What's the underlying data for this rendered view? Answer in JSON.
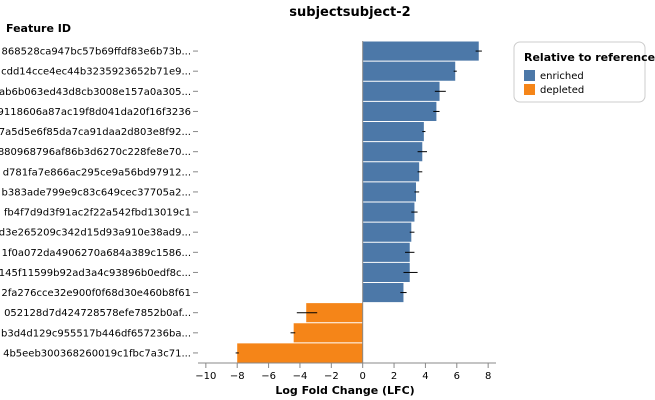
{
  "chart_data": {
    "type": "bar",
    "orientation": "horizontal",
    "title": "subjectsubject-2",
    "ylabel": "Feature ID",
    "xlabel": "Log Fold Change (LFC)",
    "xlim": [
      -10.5,
      8.5
    ],
    "xticks": [
      -10,
      -8,
      -6,
      -4,
      -2,
      0,
      2,
      4,
      6,
      8
    ],
    "xtick_labels": [
      "−10",
      "−8",
      "−6",
      "−4",
      "−2",
      "0",
      "2",
      "4",
      "6",
      "8"
    ],
    "grid": false,
    "legend": {
      "title": "Relative to reference",
      "placement": "top-right",
      "entries": [
        {
          "label": "enriched",
          "color": "#4c78a8"
        },
        {
          "label": "depleted",
          "color": "#f58518"
        }
      ]
    },
    "categories": [
      "868528ca947bc57b69ffdf83e6b73b...",
      "cdd14cce4ec44b3235923652b71e9...",
      "ab6b063ed43d8cb3008e157a0a305...",
      "9118606a87ac19f8d041da20f16f3236",
      "7a5d5e6f85da7ca91daa2d803e8f92...",
      "880968796af86b3d6270c228fe8e70...",
      "d781fa7e866ac295ce9a56bd97912...",
      "b383ade799e9c83c649cec37705a2...",
      "fb4f7d9d3f91ac2f22a542fbd13019c1",
      "d3e265209c342d15d93a910e38ad9...",
      "1f0a072da4906270a684a389c1586...",
      "145f11599b92ad3a4c93896b0edf8c...",
      "2fa276cce32e900f0f68d30e460b8f61",
      "052128d7d424728578efe7852b0af...",
      "b3d4d129c955517b446df657236ba...",
      "4b5eeb300368260019c1fbc7a3c71..."
    ],
    "values": [
      7.4,
      5.9,
      4.9,
      4.7,
      3.9,
      3.8,
      3.6,
      3.4,
      3.3,
      3.1,
      3.0,
      3.0,
      2.6,
      -3.6,
      -4.4,
      -8.0
    ],
    "error_low": [
      7.2,
      5.8,
      4.6,
      4.5,
      3.8,
      3.5,
      3.5,
      3.3,
      3.1,
      3.0,
      2.7,
      2.6,
      2.4,
      -4.2,
      -4.6,
      -8.1
    ],
    "error_high": [
      7.6,
      6.0,
      5.3,
      4.9,
      4.0,
      4.1,
      3.8,
      3.6,
      3.5,
      3.3,
      3.3,
      3.5,
      2.8,
      -2.9,
      -4.3,
      -7.9
    ],
    "groups": [
      "enriched",
      "enriched",
      "enriched",
      "enriched",
      "enriched",
      "enriched",
      "enriched",
      "enriched",
      "enriched",
      "enriched",
      "enriched",
      "enriched",
      "enriched",
      "depleted",
      "depleted",
      "depleted"
    ]
  }
}
